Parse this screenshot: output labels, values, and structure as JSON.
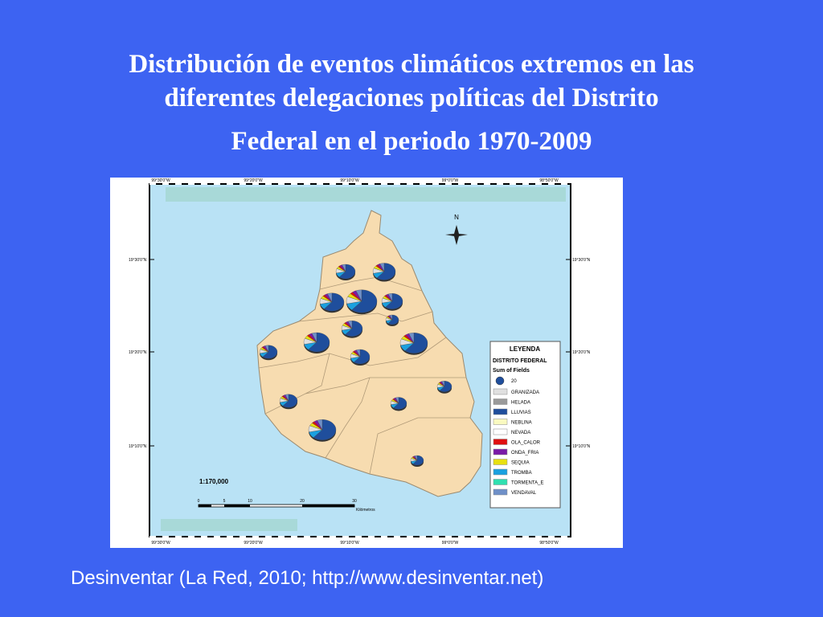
{
  "title": {
    "lines": [
      "Distribución de eventos climáticos extremos en las",
      "diferentes delegaciones políticas del Distrito",
      "Federal en el periodo 1970-2009"
    ]
  },
  "map": {
    "lat_labels": [
      "19°30'0\"N",
      "19°20'0\"N",
      "19°10'0\"N"
    ],
    "lon_labels": [
      "99°30'0\"W",
      "99°20'0\"W",
      "99°10'0\"W",
      "99°0'0\"W",
      "98°50'0\"W"
    ],
    "north": "N",
    "scale": "1:170,000",
    "scale_bar_labels": [
      "0",
      "5",
      "10",
      "20",
      "30"
    ],
    "scale_bar_unit": "Kilómetros"
  },
  "legend": {
    "title": "LEYENDA",
    "subtitle": "DISTRITO FEDERAL",
    "field": "Sum of Fields",
    "size_label": "20",
    "items": [
      {
        "label": "GRANIZADA",
        "color": "#e0e0e0"
      },
      {
        "label": "HELADA",
        "color": "#9a9a9a"
      },
      {
        "label": "LLUVIAS",
        "color": "#1f4e9c"
      },
      {
        "label": "NEBLINA",
        "color": "#fafac0"
      },
      {
        "label": "NEVADA",
        "color": "#ffffff"
      },
      {
        "label": "OLA_CALOR",
        "color": "#e01010"
      },
      {
        "label": "ONDA_FRIA",
        "color": "#7a1aa8"
      },
      {
        "label": "SEQUIA",
        "color": "#e8e010"
      },
      {
        "label": "TROMBA",
        "color": "#1aa0e0"
      },
      {
        "label": "TORMENTA_E",
        "color": "#30e0b0"
      },
      {
        "label": "VENDAVAL",
        "color": "#6f90c8"
      }
    ]
  },
  "source": "Desinventar (La Red, 2010; http://www.desinventar.net)"
}
